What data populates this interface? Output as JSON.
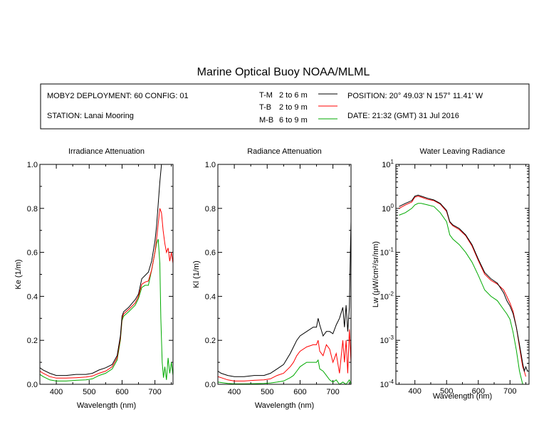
{
  "header": {
    "title": "Marine Optical Buoy NOAA/MLML",
    "deployment": "MOBY2 DEPLOYMENT: 60 CONFIG: 01",
    "station": "STATION: Lanai Mooring",
    "position": "POSITION: 20° 49.03' N   157° 11.41' W",
    "date": "DATE: 21:32 (GMT) 31 Jul 2016"
  },
  "legend": [
    {
      "code": "T-M",
      "range": "2 to 6  m",
      "color": "#000000"
    },
    {
      "code": "T-B",
      "range": "2 to 9  m",
      "color": "#ff0000"
    },
    {
      "code": "M-B",
      "range": "6 to 9  m",
      "color": "#00aa00"
    }
  ],
  "chart_data": [
    {
      "type": "line",
      "title": "Irradiance Attenuation",
      "xlabel": "Wavelength (nm)",
      "ylabel": "Ke  (1/m)",
      "xlim": [
        350,
        755
      ],
      "ylim": [
        0,
        1
      ],
      "xticks": [
        400,
        500,
        600,
        700
      ],
      "yticks": [
        0,
        0.2,
        0.4,
        0.6,
        0.8,
        1.0
      ],
      "ytick_labels": [
        "0.0",
        "0.2",
        "0.4",
        "0.6",
        "0.8",
        "1.0"
      ],
      "series": [
        {
          "name": "T-M",
          "color": "#000000",
          "x": [
            350,
            360,
            380,
            400,
            430,
            460,
            490,
            510,
            530,
            550,
            570,
            585,
            595,
            600,
            605,
            620,
            640,
            650,
            660,
            670,
            680,
            690,
            700,
            705,
            710,
            715,
            720
          ],
          "y": [
            0.075,
            0.065,
            0.05,
            0.04,
            0.04,
            0.045,
            0.045,
            0.05,
            0.065,
            0.075,
            0.09,
            0.13,
            0.22,
            0.31,
            0.33,
            0.35,
            0.385,
            0.41,
            0.48,
            0.495,
            0.51,
            0.56,
            0.65,
            0.72,
            0.82,
            0.92,
            1.0
          ]
        },
        {
          "name": "T-B",
          "color": "#ff0000",
          "x": [
            350,
            360,
            380,
            400,
            430,
            460,
            490,
            510,
            530,
            550,
            570,
            585,
            595,
            600,
            605,
            620,
            640,
            650,
            660,
            670,
            680,
            690,
            700,
            705,
            710,
            715,
            720,
            725,
            730,
            735,
            740,
            745,
            750,
            755
          ],
          "y": [
            0.06,
            0.05,
            0.035,
            0.028,
            0.028,
            0.03,
            0.033,
            0.038,
            0.05,
            0.06,
            0.08,
            0.12,
            0.21,
            0.3,
            0.32,
            0.34,
            0.37,
            0.4,
            0.455,
            0.465,
            0.47,
            0.52,
            0.6,
            0.66,
            0.73,
            0.8,
            0.78,
            0.7,
            0.64,
            0.6,
            0.62,
            0.56,
            0.6,
            0.55
          ]
        },
        {
          "name": "M-B",
          "color": "#00aa00",
          "x": [
            350,
            360,
            380,
            400,
            430,
            460,
            490,
            510,
            530,
            550,
            570,
            585,
            595,
            600,
            605,
            620,
            640,
            650,
            660,
            670,
            680,
            690,
            700,
            705,
            710,
            715,
            718,
            722,
            726,
            730,
            735,
            740,
            745,
            750,
            755
          ],
          "y": [
            0.045,
            0.035,
            0.02,
            0.015,
            0.015,
            0.018,
            0.02,
            0.025,
            0.04,
            0.05,
            0.07,
            0.11,
            0.2,
            0.29,
            0.31,
            0.33,
            0.36,
            0.39,
            0.44,
            0.45,
            0.45,
            0.52,
            0.6,
            0.64,
            0.66,
            0.55,
            0.3,
            0.1,
            0.03,
            0.08,
            0.02,
            0.12,
            0.05,
            0.1,
            0.04
          ]
        }
      ]
    },
    {
      "type": "line",
      "title": "Radiance Attenuation",
      "xlabel": "Wavelength (nm)",
      "ylabel": "Kl  (1/m)",
      "xlim": [
        350,
        755
      ],
      "ylim": [
        0,
        1
      ],
      "xticks": [
        400,
        500,
        600,
        700
      ],
      "yticks": [
        0,
        0.2,
        0.4,
        0.6,
        0.8,
        1.0
      ],
      "ytick_labels": [
        "0.0",
        "0.2",
        "0.4",
        "0.6",
        "0.8",
        "1.0"
      ],
      "series": [
        {
          "name": "T-M",
          "color": "#000000",
          "x": [
            350,
            360,
            380,
            400,
            430,
            460,
            490,
            510,
            530,
            550,
            570,
            580,
            590,
            600,
            620,
            640,
            650,
            655,
            660,
            670,
            680,
            690,
            700,
            710,
            720,
            730,
            735,
            740,
            745,
            750,
            753,
            755
          ],
          "y": [
            0.06,
            0.05,
            0.04,
            0.035,
            0.035,
            0.04,
            0.04,
            0.05,
            0.07,
            0.09,
            0.14,
            0.17,
            0.2,
            0.22,
            0.24,
            0.26,
            0.26,
            0.3,
            0.27,
            0.22,
            0.24,
            0.24,
            0.23,
            0.27,
            0.3,
            0.35,
            0.26,
            0.36,
            0.24,
            0.35,
            0.6,
            0.74
          ]
        },
        {
          "name": "T-B",
          "color": "#ff0000",
          "x": [
            350,
            360,
            380,
            400,
            430,
            460,
            490,
            510,
            530,
            550,
            570,
            580,
            590,
            600,
            620,
            640,
            650,
            655,
            660,
            670,
            680,
            690,
            700,
            710,
            720,
            730,
            735,
            740,
            745,
            750,
            755
          ],
          "y": [
            0.035,
            0.03,
            0.02,
            0.015,
            0.015,
            0.018,
            0.02,
            0.025,
            0.04,
            0.05,
            0.08,
            0.1,
            0.13,
            0.15,
            0.17,
            0.18,
            0.18,
            0.2,
            0.15,
            0.13,
            0.18,
            0.16,
            0.1,
            0.14,
            0.05,
            0.2,
            0.1,
            0.2,
            0.05,
            0.25,
            0.1
          ]
        },
        {
          "name": "M-B",
          "color": "#00aa00",
          "x": [
            350,
            360,
            380,
            400,
            430,
            460,
            490,
            510,
            530,
            550,
            570,
            580,
            590,
            600,
            610,
            620,
            640,
            650,
            655,
            660,
            670,
            680,
            690,
            700,
            710,
            720,
            730,
            740,
            750,
            755
          ],
          "y": [
            0.01,
            0.008,
            0.004,
            0.002,
            0.002,
            0.003,
            0.004,
            0.006,
            0.01,
            0.015,
            0.03,
            0.04,
            0.06,
            0.08,
            0.09,
            0.1,
            0.1,
            0.1,
            0.11,
            0.07,
            0.06,
            0.04,
            0.02,
            0.01,
            0.02,
            0.0,
            0.01,
            0.0,
            0.02,
            0.0
          ]
        }
      ]
    },
    {
      "type": "line",
      "title": "Water Leaving Radiance",
      "xlabel": "Wavelength (nm)",
      "ylabel": "Lw  (μW/cm²/sr/nm)",
      "ylabel_sup": "2",
      "xlim": [
        340,
        760
      ],
      "ylim": [
        0.0001,
        10
      ],
      "yscale": "log",
      "xticks": [
        400,
        500,
        600,
        700
      ],
      "yticks": [
        0.0001,
        0.001,
        0.01,
        0.1,
        1,
        10
      ],
      "ytick_exponents": [
        "-4",
        "-3",
        "-2",
        "-1",
        "0",
        "1"
      ],
      "series": [
        {
          "name": "T-M",
          "color": "#000000",
          "x": [
            350,
            370,
            390,
            400,
            410,
            420,
            440,
            460,
            480,
            500,
            510,
            520,
            540,
            560,
            580,
            600,
            620,
            640,
            660,
            680,
            690,
            700,
            710,
            720,
            730,
            740,
            745,
            750,
            755
          ],
          "y": [
            1.1,
            1.3,
            1.5,
            1.9,
            2.0,
            1.9,
            1.7,
            1.55,
            1.3,
            0.9,
            0.5,
            0.42,
            0.35,
            0.25,
            0.15,
            0.07,
            0.035,
            0.025,
            0.02,
            0.012,
            0.008,
            0.006,
            0.004,
            0.002,
            0.0008,
            0.0003,
            0.0002,
            0.00025,
            0.0002
          ]
        },
        {
          "name": "T-B",
          "color": "#ff0000",
          "x": [
            350,
            370,
            390,
            400,
            410,
            420,
            440,
            460,
            480,
            500,
            510,
            520,
            540,
            560,
            580,
            600,
            620,
            640,
            660,
            680,
            690,
            700,
            710,
            720,
            730,
            740,
            745,
            750
          ],
          "y": [
            1.0,
            1.2,
            1.4,
            1.8,
            1.9,
            1.8,
            1.6,
            1.5,
            1.25,
            0.85,
            0.48,
            0.4,
            0.33,
            0.24,
            0.14,
            0.065,
            0.032,
            0.023,
            0.019,
            0.014,
            0.01,
            0.007,
            0.0045,
            0.002,
            0.0007,
            0.00025,
            0.0002,
            0.00015
          ]
        },
        {
          "name": "M-B",
          "color": "#00aa00",
          "x": [
            350,
            370,
            390,
            400,
            410,
            420,
            440,
            460,
            480,
            500,
            510,
            520,
            540,
            560,
            580,
            600,
            620,
            640,
            660,
            680,
            690,
            700,
            710,
            720,
            730,
            740
          ],
          "y": [
            0.7,
            0.8,
            1.0,
            1.2,
            1.3,
            1.3,
            1.2,
            1.1,
            0.8,
            0.5,
            0.25,
            0.2,
            0.15,
            0.1,
            0.06,
            0.03,
            0.014,
            0.01,
            0.008,
            0.005,
            0.004,
            0.003,
            0.0015,
            0.0006,
            0.0002,
            0.0001
          ]
        }
      ]
    }
  ]
}
